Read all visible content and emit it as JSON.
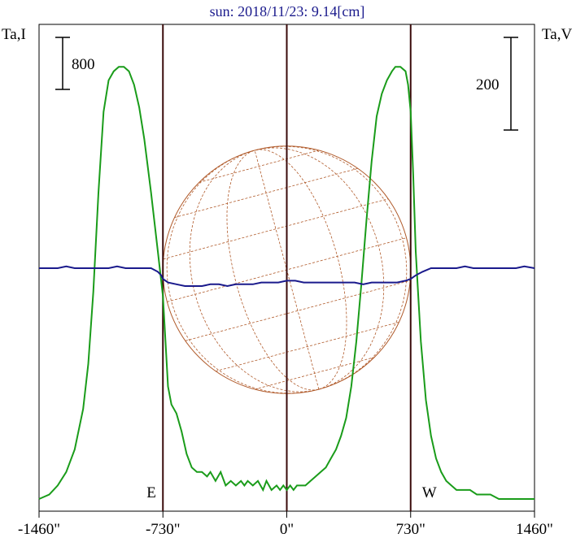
{
  "chart_data": {
    "type": "line",
    "title": "sun: 2018/11/23: 9.14[cm]",
    "left_axis_label": "Ta,I",
    "right_axis_label": "Ta,V",
    "left_scale_bar_label": "800",
    "right_scale_bar_label": "200",
    "x_unit": "arcsec",
    "xlim": [
      -1460,
      1460
    ],
    "x_ticks": [
      -1460,
      -730,
      0,
      730,
      1460
    ],
    "x_tick_labels": [
      "-1460\"",
      "-730\"",
      "0\"",
      "730\"",
      "1460\""
    ],
    "limb_markers": [
      {
        "label": "E",
        "x": -730
      },
      {
        "label": "W",
        "x": 730
      }
    ],
    "center_marker_x": 0,
    "disk_radius_arcsec": 730,
    "series": [
      {
        "color": "#1a9c1a",
        "axis": "left",
        "x": [
          -1460,
          -1400,
          -1350,
          -1300,
          -1250,
          -1200,
          -1170,
          -1140,
          -1110,
          -1080,
          -1050,
          -1020,
          -990,
          -960,
          -930,
          -900,
          -870,
          -840,
          -800,
          -760,
          -730,
          -715,
          -700,
          -680,
          -650,
          -620,
          -590,
          -560,
          -530,
          -500,
          -470,
          -450,
          -420,
          -390,
          -360,
          -330,
          -300,
          -270,
          -250,
          -230,
          -200,
          -170,
          -140,
          -120,
          -90,
          -60,
          -40,
          -20,
          0,
          20,
          40,
          60,
          80,
          110,
          140,
          170,
          200,
          230,
          260,
          290,
          320,
          350,
          380,
          410,
          440,
          470,
          500,
          530,
          560,
          590,
          620,
          640,
          670,
          700,
          715,
          730,
          745,
          760,
          790,
          820,
          850,
          880,
          910,
          940,
          970,
          1000,
          1040,
          1080,
          1120,
          1160,
          1200,
          1250,
          1300,
          1350,
          1400,
          1460
        ],
        "y": [
          0.0,
          0.01,
          0.03,
          0.06,
          0.11,
          0.2,
          0.3,
          0.46,
          0.68,
          0.86,
          0.93,
          0.95,
          0.96,
          0.96,
          0.95,
          0.92,
          0.87,
          0.8,
          0.68,
          0.55,
          0.45,
          0.35,
          0.25,
          0.21,
          0.19,
          0.15,
          0.1,
          0.07,
          0.06,
          0.06,
          0.05,
          0.06,
          0.04,
          0.06,
          0.03,
          0.04,
          0.03,
          0.04,
          0.03,
          0.04,
          0.03,
          0.04,
          0.02,
          0.04,
          0.02,
          0.03,
          0.02,
          0.03,
          0.02,
          0.03,
          0.02,
          0.03,
          0.03,
          0.03,
          0.04,
          0.05,
          0.06,
          0.07,
          0.09,
          0.11,
          0.14,
          0.18,
          0.25,
          0.35,
          0.48,
          0.62,
          0.75,
          0.85,
          0.9,
          0.93,
          0.95,
          0.96,
          0.96,
          0.95,
          0.92,
          0.86,
          0.72,
          0.55,
          0.35,
          0.22,
          0.14,
          0.09,
          0.06,
          0.04,
          0.03,
          0.02,
          0.02,
          0.02,
          0.01,
          0.01,
          0.01,
          0.0,
          0.0,
          0.0,
          0.0,
          0.0
        ],
        "y_scale": "relative"
      },
      {
        "color": "#1a1a8c",
        "axis": "right",
        "x": [
          -1460,
          -1400,
          -1350,
          -1300,
          -1250,
          -1200,
          -1150,
          -1100,
          -1050,
          -1000,
          -950,
          -900,
          -850,
          -800,
          -760,
          -740,
          -730,
          -700,
          -650,
          -600,
          -550,
          -500,
          -450,
          -400,
          -350,
          -300,
          -250,
          -200,
          -150,
          -100,
          -50,
          0,
          50,
          100,
          150,
          200,
          250,
          300,
          350,
          400,
          450,
          500,
          550,
          600,
          650,
          700,
          730,
          760,
          800,
          850,
          900,
          950,
          1000,
          1050,
          1100,
          1150,
          1200,
          1250,
          1300,
          1350,
          1400,
          1460
        ],
        "y": [
          0.0,
          0.0,
          0.0,
          0.01,
          0.0,
          0.0,
          0.0,
          0.0,
          0.0,
          0.01,
          0.0,
          0.0,
          0.0,
          0.0,
          -0.02,
          -0.04,
          -0.06,
          -0.08,
          -0.09,
          -0.1,
          -0.1,
          -0.1,
          -0.09,
          -0.09,
          -0.1,
          -0.09,
          -0.09,
          -0.09,
          -0.08,
          -0.08,
          -0.08,
          -0.07,
          -0.07,
          -0.08,
          -0.08,
          -0.08,
          -0.08,
          -0.08,
          -0.08,
          -0.08,
          -0.09,
          -0.08,
          -0.08,
          -0.08,
          -0.08,
          -0.07,
          -0.06,
          -0.04,
          -0.02,
          0.0,
          0.0,
          0.0,
          0.0,
          0.01,
          0.0,
          0.0,
          0.0,
          0.0,
          0.0,
          0.0,
          0.01,
          0.0
        ],
        "y_scale": "relative"
      }
    ],
    "colors": {
      "frame": "#000000",
      "markers": "#3a0a0a",
      "grid": "#b05a2a",
      "title": "#1a1a8c"
    }
  }
}
